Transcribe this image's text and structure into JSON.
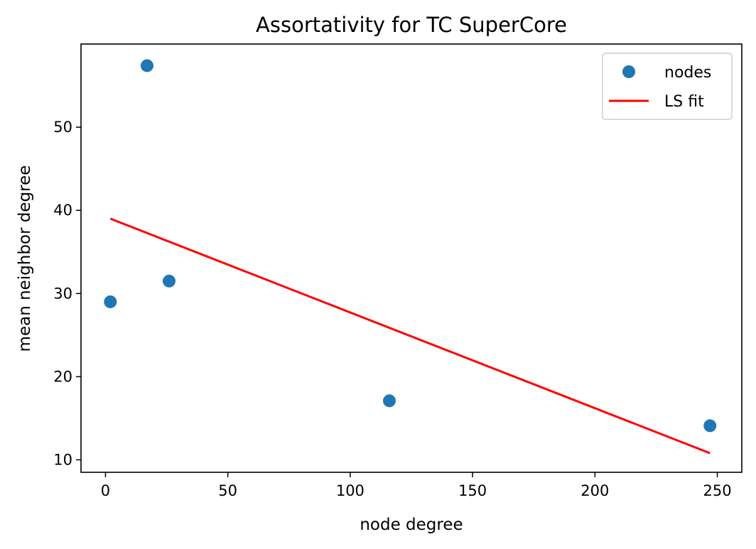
{
  "chart_data": {
    "type": "scatter",
    "title": "Assortativity for TC SuperCore",
    "xlabel": "node degree",
    "ylabel": "mean neighbor degree",
    "xlim": [
      -10,
      260
    ],
    "ylim": [
      8.5,
      60
    ],
    "xticks": [
      0,
      50,
      100,
      150,
      200,
      250
    ],
    "yticks": [
      10,
      20,
      30,
      40,
      50
    ],
    "grid": false,
    "legend_position": "top-right",
    "series": [
      {
        "name": "nodes",
        "kind": "scatter",
        "color": "#1f77b4",
        "points": [
          {
            "x": 2,
            "y": 29.0
          },
          {
            "x": 17,
            "y": 57.4
          },
          {
            "x": 26,
            "y": 31.5
          },
          {
            "x": 116,
            "y": 17.1
          },
          {
            "x": 247,
            "y": 14.1
          }
        ]
      },
      {
        "name": "LS fit",
        "kind": "line",
        "color": "#ff0000",
        "points": [
          {
            "x": 2,
            "y": 39.0
          },
          {
            "x": 247,
            "y": 10.8
          }
        ]
      }
    ]
  }
}
